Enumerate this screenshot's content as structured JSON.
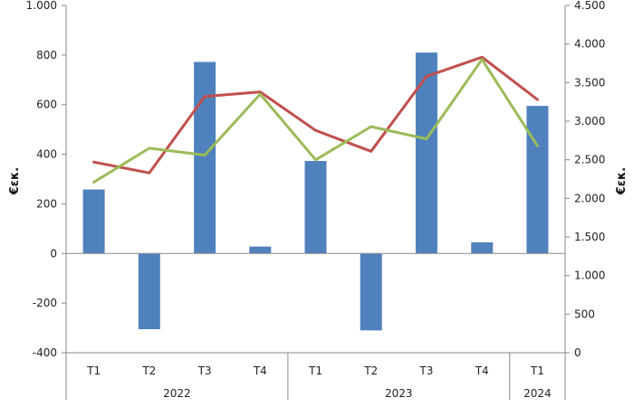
{
  "chart_data": {
    "type": "bar",
    "categories": [
      "T1",
      "T2",
      "T3",
      "T4",
      "T1",
      "T2",
      "T3",
      "T4",
      "T1"
    ],
    "groups": [
      {
        "label": "2022",
        "count": 4
      },
      {
        "label": "2023",
        "count": 4
      },
      {
        "label": "2024",
        "count": 1
      }
    ],
    "series": [
      {
        "type": "bar",
        "axis": "left",
        "color": "#4f81bd",
        "values": [
          258,
          -305,
          772,
          28,
          373,
          -310,
          810,
          45,
          595
        ]
      },
      {
        "type": "line",
        "axis": "right",
        "color": "#c0504d",
        "values": [
          2470,
          2330,
          3320,
          3380,
          2880,
          2610,
          3580,
          3830,
          3280
        ]
      },
      {
        "type": "line",
        "axis": "right",
        "color": "#9bbb59",
        "values": [
          2210,
          2650,
          2560,
          3350,
          2500,
          2930,
          2770,
          3800,
          2680
        ]
      }
    ],
    "left_axis": {
      "title": "€εκ.",
      "ylim": [
        -400,
        1000
      ],
      "ticks": [
        -400,
        -200,
        0,
        200,
        400,
        600,
        800,
        1000
      ],
      "tick_labels": [
        "-400",
        "-200",
        "0",
        "200",
        "400",
        "600",
        "800",
        "1.000"
      ]
    },
    "right_axis": {
      "title": "€εκ.",
      "ylim": [
        0,
        4500
      ],
      "ticks": [
        0,
        500,
        1000,
        1500,
        2000,
        2500,
        3000,
        3500,
        4000,
        4500
      ],
      "tick_labels": [
        "0",
        "500",
        "1.000",
        "1.500",
        "2.000",
        "2.500",
        "3.000",
        "3.500",
        "4.000",
        "4.500"
      ]
    },
    "grid": false,
    "legend": "none"
  }
}
